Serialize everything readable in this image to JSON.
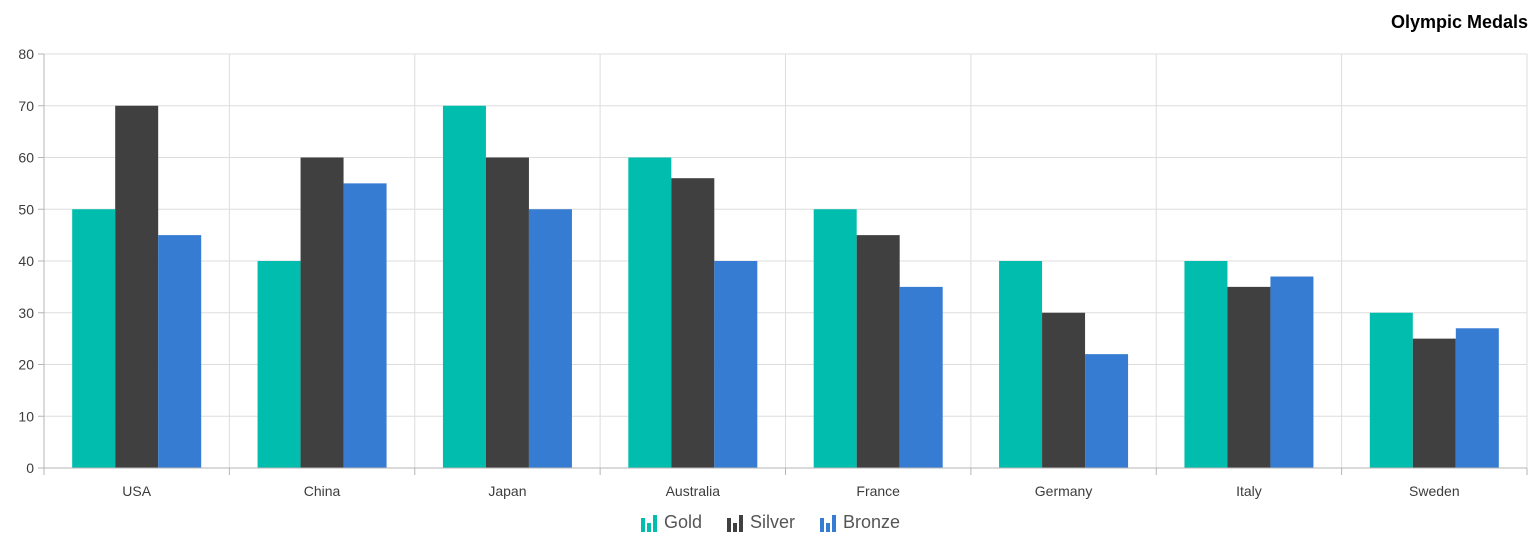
{
  "chart_data": {
    "type": "bar",
    "title": "Olympic Medals",
    "xlabel": "",
    "ylabel": "",
    "categories": [
      "USA",
      "China",
      "Japan",
      "Australia",
      "France",
      "Germany",
      "Italy",
      "Sweden"
    ],
    "series": [
      {
        "name": "Gold",
        "color": "#00bdae",
        "values": [
          50,
          40,
          70,
          60,
          50,
          40,
          40,
          30
        ]
      },
      {
        "name": "Silver",
        "color": "#404041",
        "values": [
          70,
          60,
          60,
          56,
          45,
          30,
          35,
          25
        ]
      },
      {
        "name": "Bronze",
        "color": "#357cd2",
        "values": [
          45,
          55,
          50,
          40,
          35,
          22,
          37,
          27
        ]
      }
    ],
    "ylim": [
      0,
      80
    ],
    "yticks": [
      0,
      10,
      20,
      30,
      40,
      50,
      60,
      70,
      80
    ],
    "grid": true,
    "legend_position": "bottom"
  }
}
